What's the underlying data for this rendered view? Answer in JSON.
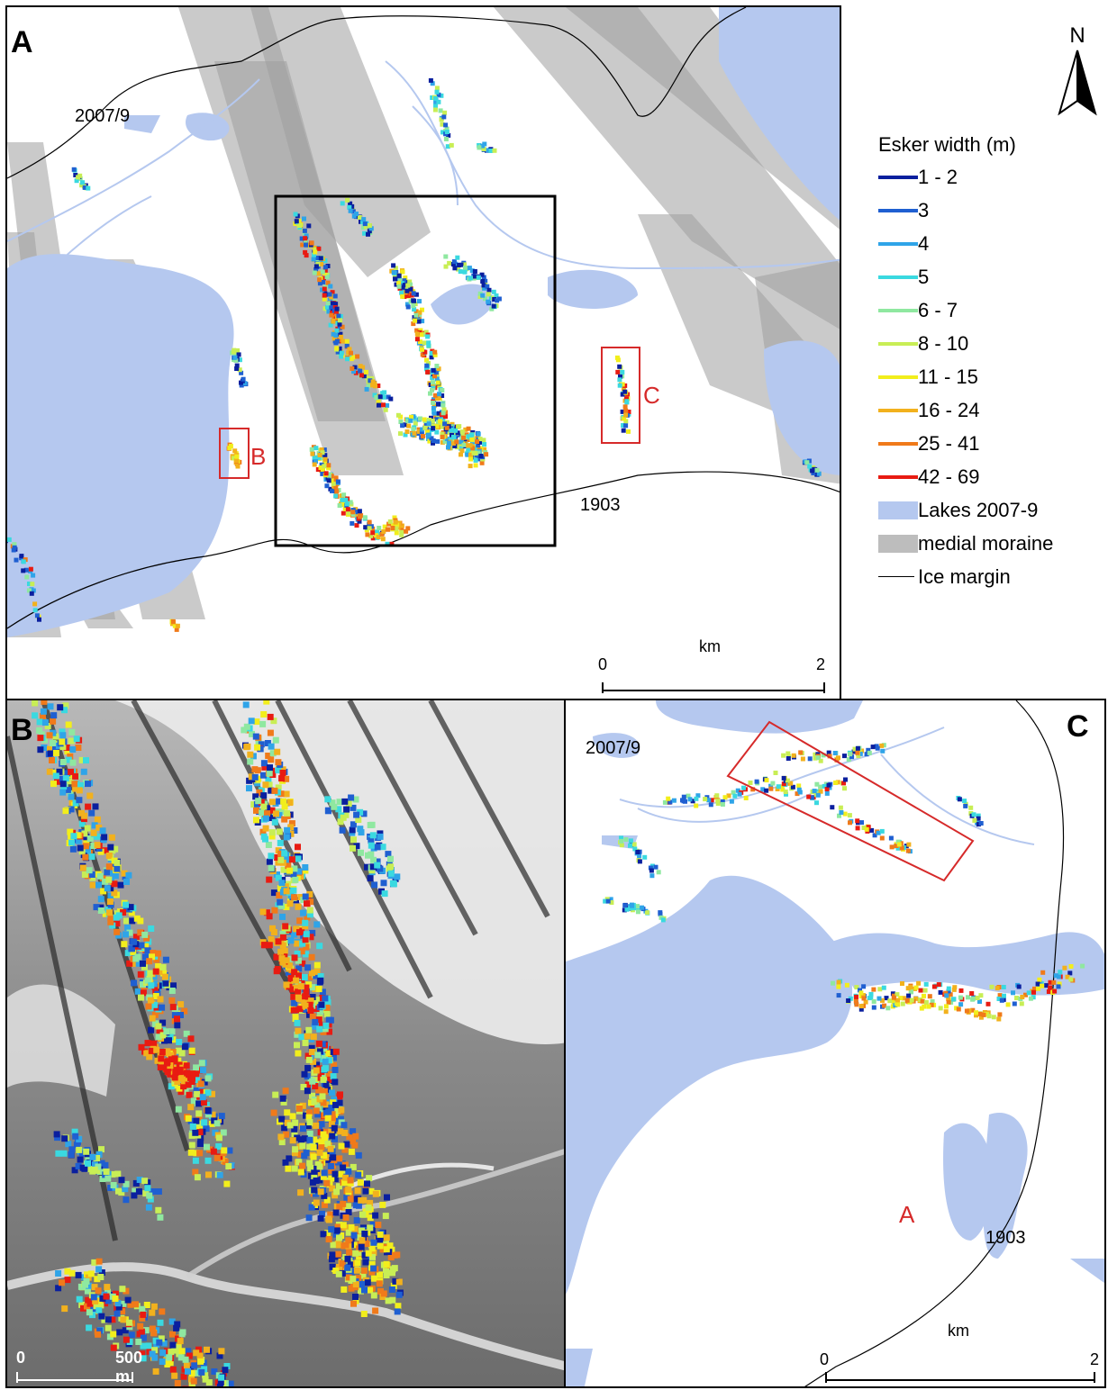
{
  "panels": {
    "a": {
      "label": "A",
      "year_top": "2007/9",
      "year_bottom": "1903",
      "box_b_label": "B",
      "box_c_label": "C",
      "scale": {
        "unit": "km",
        "start": "0",
        "end": "2"
      }
    },
    "b": {
      "label": "B",
      "scale": {
        "start": "0",
        "end": "500 m"
      }
    },
    "c": {
      "label": "C",
      "year_top": "2007/9",
      "year_bottom": "1903",
      "box_a_label": "A",
      "scale": {
        "unit": "km",
        "start": "0",
        "end": "2"
      }
    }
  },
  "north_arrow": {
    "letter": "N"
  },
  "legend": {
    "title": "Esker width (m)",
    "classes": [
      {
        "label": "1 - 2",
        "color": "#0a1f9e"
      },
      {
        "label": "3",
        "color": "#1f5fd1"
      },
      {
        "label": "4",
        "color": "#2fa4e8"
      },
      {
        "label": "5",
        "color": "#3ad9e0"
      },
      {
        "label": "6 - 7",
        "color": "#8fe8a0"
      },
      {
        "label": "8 - 10",
        "color": "#c8ee55"
      },
      {
        "label": "11 - 15",
        "color": "#f2ee1c"
      },
      {
        "label": "16 - 24",
        "color": "#f2b11d"
      },
      {
        "label": "25 - 41",
        "color": "#f07a1a"
      },
      {
        "label": "42 - 69",
        "color": "#e81b12"
      }
    ],
    "lakes_label": "Lakes 2007-9",
    "lakes_color": "#b5c8ef",
    "moraine_label": "medial moraine",
    "moraine_color": "#bdbdbd",
    "ice_label": "Ice margin"
  }
}
